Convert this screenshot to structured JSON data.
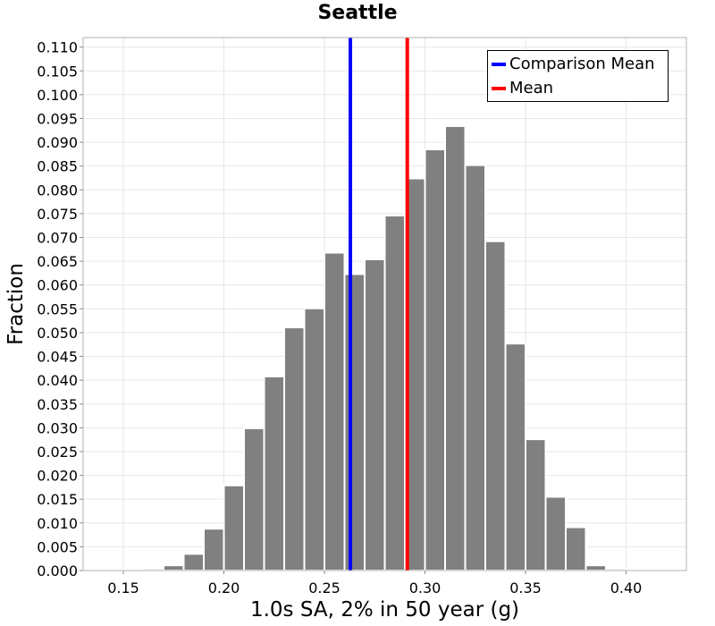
{
  "chart_data": {
    "type": "bar",
    "title": "Seattle",
    "xlabel": "1.0s SA, 2% in 50 year (g)",
    "ylabel": "Fraction",
    "xlim": [
      0.13,
      0.43
    ],
    "ylim": [
      0,
      0.112
    ],
    "xticks": [
      "0.15",
      "0.20",
      "0.25",
      "0.30",
      "0.35",
      "0.40"
    ],
    "yticks": [
      "0.000",
      "0.005",
      "0.010",
      "0.015",
      "0.020",
      "0.025",
      "0.030",
      "0.035",
      "0.040",
      "0.045",
      "0.050",
      "0.055",
      "0.060",
      "0.065",
      "0.070",
      "0.075",
      "0.080",
      "0.085",
      "0.090",
      "0.095",
      "0.100",
      "0.105",
      "0.110"
    ],
    "grid": true,
    "legend_position": "top-right",
    "bin_width": 0.01,
    "bin_centers": [
      0.145,
      0.155,
      0.165,
      0.175,
      0.185,
      0.195,
      0.205,
      0.215,
      0.225,
      0.235,
      0.245,
      0.255,
      0.265,
      0.275,
      0.285,
      0.295,
      0.305,
      0.315,
      0.325,
      0.335,
      0.345,
      0.355,
      0.365,
      0.375,
      0.385,
      0.395,
      0.405,
      0.415
    ],
    "values": [
      0.0001,
      0.0002,
      0.0004,
      0.0011,
      0.0035,
      0.0088,
      0.0179,
      0.0299,
      0.0408,
      0.0511,
      0.0551,
      0.0668,
      0.0623,
      0.0654,
      0.0746,
      0.0824,
      0.0885,
      0.0934,
      0.0852,
      0.0692,
      0.0477,
      0.0276,
      0.0155,
      0.0091,
      0.0011,
      0.0004,
      0.0001,
      0.0001
    ],
    "bar_color": "#808080",
    "vlines": [
      {
        "name": "Comparison Mean",
        "x": 0.2629,
        "color": "#0000ff"
      },
      {
        "name": "Mean",
        "x": 0.2912,
        "color": "#ff0000"
      }
    ]
  }
}
